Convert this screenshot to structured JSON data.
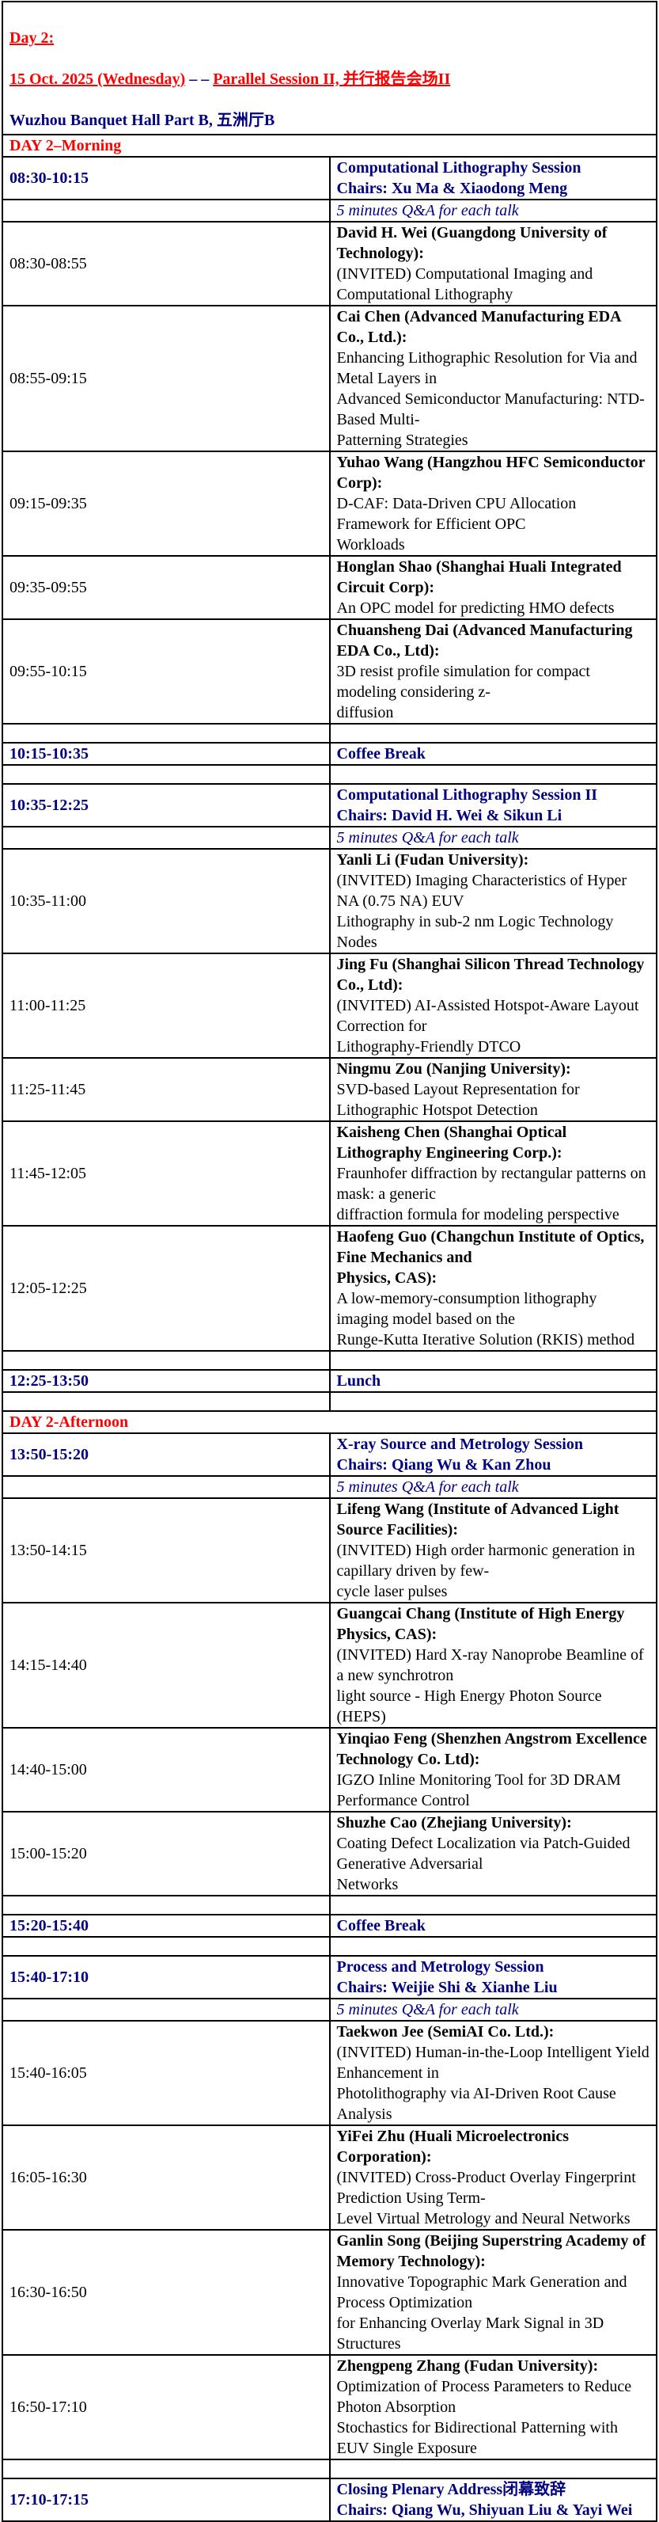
{
  "header": {
    "day": "Day 2:",
    "date": "15 Oct. 2025 (Wednesday)",
    "dash": " – – ",
    "session": "Parallel Session II, 并行报告会场II",
    "venue": "Wuzhou Banquet Hall Part B, 五洲厅B"
  },
  "colors": {
    "red": "#ff0000",
    "navy": "#000080",
    "text": "#000000"
  },
  "rows": [
    {
      "type": "section",
      "title": "DAY 2–Morning"
    },
    {
      "type": "session",
      "time": "08:30-10:15",
      "title": "Computational Lithography Session",
      "chairs": "Chairs: Xu Ma & Xiaodong Meng"
    },
    {
      "type": "qa",
      "text": "5 minutes Q&A for each talk"
    },
    {
      "type": "talk",
      "time": "08:30-08:55",
      "speaker": "David H. Wei (Guangdong University of Technology):",
      "title": "(INVITED) Computational Imaging and Computational Lithography"
    },
    {
      "type": "talk",
      "time": "08:55-09:15",
      "speaker": "Cai Chen (Advanced Manufacturing EDA Co., Ltd.):",
      "title": "Enhancing Lithographic Resolution for Via and Metal Layers in\nAdvanced Semiconductor Manufacturing: NTD-Based Multi-\nPatterning Strategies"
    },
    {
      "type": "talk",
      "time": "09:15-09:35",
      "speaker": "Yuhao Wang (Hangzhou HFC Semiconductor Corp):",
      "title": "D-CAF: Data-Driven CPU Allocation Framework for Efficient OPC\nWorkloads"
    },
    {
      "type": "talk",
      "time": "09:35-09:55",
      "speaker": "Honglan Shao (Shanghai Huali Integrated Circuit Corp):",
      "title": "An OPC model for predicting HMO defects"
    },
    {
      "type": "talk",
      "time": "09:55-10:15",
      "speaker": "Chuansheng Dai (Advanced Manufacturing EDA Co., Ltd):",
      "title": "3D resist profile simulation for compact modeling considering z-\ndiffusion"
    },
    {
      "type": "empty"
    },
    {
      "type": "break",
      "time": "10:15-10:35",
      "title": "Coffee Break"
    },
    {
      "type": "empty"
    },
    {
      "type": "session",
      "time": "10:35-12:25",
      "title": "Computational Lithography Session II",
      "chairs": "Chairs: David H. Wei & Sikun Li"
    },
    {
      "type": "qa",
      "text": "5 minutes Q&A for each talk"
    },
    {
      "type": "talk",
      "time": "10:35-11:00",
      "speaker": "Yanli Li (Fudan University):",
      "title": "(INVITED) Imaging Characteristics of Hyper NA (0.75 NA) EUV\nLithography in sub-2 nm Logic Technology Nodes"
    },
    {
      "type": "talk",
      "time": "11:00-11:25",
      "speaker": "Jing Fu (Shanghai Silicon Thread Technology Co., Ltd):",
      "title": "(INVITED) AI-Assisted Hotspot-Aware Layout Correction for\nLithography-Friendly DTCO"
    },
    {
      "type": "talk",
      "time": "11:25-11:45",
      "speaker": "Ningmu Zou (Nanjing University):",
      "title": "SVD-based Layout Representation for Lithographic Hotspot Detection"
    },
    {
      "type": "talk",
      "time": "11:45-12:05",
      "speaker": "Kaisheng Chen (Shanghai Optical Lithography Engineering Corp.):",
      "title": "Fraunhofer diffraction by rectangular patterns on mask: a generic\ndiffraction formula for modeling perspective"
    },
    {
      "type": "talk",
      "time": "12:05-12:25",
      "speaker": "Haofeng Guo (Changchun Institute of Optics, Fine Mechanics and\nPhysics, CAS):",
      "title": "A low-memory-consumption lithography imaging model based on the\nRunge-Kutta Iterative Solution (RKIS) method"
    },
    {
      "type": "empty"
    },
    {
      "type": "break",
      "time": "12:25-13:50",
      "title": "Lunch"
    },
    {
      "type": "empty"
    },
    {
      "type": "section",
      "title": "DAY 2-Afternoon"
    },
    {
      "type": "session",
      "time": "13:50-15:20",
      "title": "X-ray Source and Metrology Session",
      "chairs": "Chairs: Qiang Wu & Kan Zhou"
    },
    {
      "type": "qa",
      "text": "5 minutes Q&A for each talk"
    },
    {
      "type": "talk",
      "time": "13:50-14:15",
      "speaker": "Lifeng Wang (Institute of Advanced Light Source Facilities):",
      "title": "(INVITED) High order harmonic generation in capillary driven by few-\ncycle laser pulses"
    },
    {
      "type": "talk",
      "time": "14:15-14:40",
      "speaker": "Guangcai Chang (Institute of High Energy Physics, CAS):",
      "title": "(INVITED) Hard X-ray Nanoprobe Beamline of a new synchrotron\nlight source - High Energy Photon Source (HEPS)"
    },
    {
      "type": "talk",
      "time": "14:40-15:00",
      "speaker": "Yinqiao Feng (Shenzhen Angstrom Excellence Technology Co. Ltd):",
      "title": "IGZO Inline Monitoring Tool for 3D DRAM Performance Control"
    },
    {
      "type": "talk",
      "time": "15:00-15:20",
      "speaker": "Shuzhe Cao (Zhejiang University):",
      "title": "Coating Defect Localization via Patch-Guided Generative Adversarial\nNetworks"
    },
    {
      "type": "empty"
    },
    {
      "type": "break",
      "time": "15:20-15:40",
      "title": "Coffee Break"
    },
    {
      "type": "empty"
    },
    {
      "type": "session",
      "time": "15:40-17:10",
      "title": "Process and Metrology Session",
      "chairs": "Chairs: Weijie Shi & Xianhe Liu"
    },
    {
      "type": "qa",
      "text": "5 minutes Q&A for each talk"
    },
    {
      "type": "talk",
      "time": "15:40-16:05",
      "speaker": "Taekwon Jee (SemiAI Co. Ltd.):",
      "title": "(INVITED) Human-in-the-Loop Intelligent Yield Enhancement in\nPhotolithography via AI-Driven Root Cause Analysis"
    },
    {
      "type": "talk",
      "time": "16:05-16:30",
      "speaker": "YiFei Zhu (Huali Microelectronics Corporation):",
      "title": "(INVITED) Cross-Product Overlay Fingerprint Prediction Using Term-\nLevel Virtual Metrology and Neural Networks"
    },
    {
      "type": "talk",
      "time": "16:30-16:50",
      "speaker": "Ganlin Song (Beijing Superstring Academy of Memory Technology):",
      "title": "Innovative Topographic Mark Generation and Process Optimization\nfor Enhancing Overlay Mark Signal in 3D Structures"
    },
    {
      "type": "talk",
      "time": "16:50-17:10",
      "speaker": "Zhengpeng Zhang (Fudan University):",
      "title": "Optimization of Process Parameters to Reduce Photon Absorption\nStochastics for Bidirectional Patterning with EUV Single Exposure"
    },
    {
      "type": "empty"
    },
    {
      "type": "session",
      "time": "17:10-17:15",
      "title": "Closing Plenary Address闭幕致辞",
      "chairs": "Chairs: Qiang Wu, Shiyuan Liu & Yayi Wei"
    }
  ]
}
